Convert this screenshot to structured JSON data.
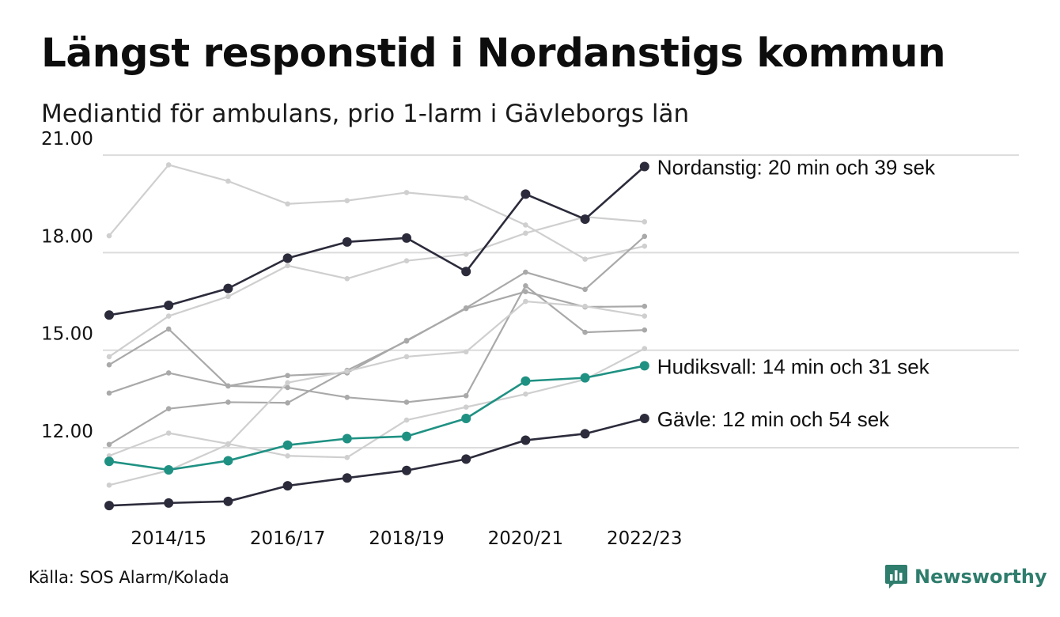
{
  "title": "Längst responstid i Nordanstigs kommun",
  "subtitle": "Mediantid för ambulans, prio 1-larm i Gävleborgs län",
  "source": "Källa: SOS Alarm/Kolada",
  "brand": {
    "name": "Newsworthy",
    "icon": "newsworthy-logo-icon",
    "color": "#2f7d6d"
  },
  "chart_data": {
    "type": "line",
    "title": "Längst responstid i Nordanstigs kommun",
    "subtitle": "Mediantid för ambulans, prio 1-larm i Gävleborgs län",
    "xlabel": "",
    "ylabel": "",
    "x": [
      "2013/14",
      "2014/15",
      "2015/16",
      "2016/17",
      "2017/18",
      "2018/19",
      "2019/20",
      "2020/21",
      "2021/22",
      "2022/23"
    ],
    "x_tick_labels": [
      {
        "index": 1,
        "label": "2014/15"
      },
      {
        "index": 3,
        "label": "2016/17"
      },
      {
        "index": 5,
        "label": "2018/19"
      },
      {
        "index": 7,
        "label": "2020/21"
      },
      {
        "index": 9,
        "label": "2022/23"
      }
    ],
    "y_ticks": [
      {
        "value": 12,
        "label": "12.00"
      },
      {
        "value": 15,
        "label": "15.00"
      },
      {
        "value": 18,
        "label": "18.00"
      },
      {
        "value": 21,
        "label": "21.00"
      }
    ],
    "ylim": [
      10.4,
      21.6
    ],
    "grid": true,
    "highlighted": [
      {
        "values": [
          16.08,
          16.38,
          16.9,
          17.83,
          18.33,
          18.45,
          17.42,
          19.8,
          19.03,
          20.65
        ],
        "color": "#2b2b3b",
        "end_label": "Nordanstig: 20 min och 39 sek"
      },
      {
        "values": [
          11.58,
          11.32,
          11.6,
          12.08,
          12.28,
          12.35,
          12.9,
          14.05,
          14.15,
          14.52
        ],
        "color": "#1f9183",
        "end_label": "Hudiksvall: 14 min och 31 sek"
      },
      {
        "values": [
          10.22,
          10.3,
          10.35,
          10.83,
          11.07,
          11.3,
          11.65,
          12.23,
          12.43,
          12.9
        ],
        "color": "#2b2b3b",
        "end_label": "Gävle: 12 min och 54 sek"
      }
    ],
    "background_series": [
      {
        "values": [
          18.52,
          20.7,
          20.2,
          19.5,
          19.6,
          19.85,
          19.68,
          18.85,
          17.8,
          18.2
        ],
        "color": "#cfcfcf"
      },
      {
        "values": [
          14.8,
          16.05,
          16.65,
          17.6,
          17.2,
          17.75,
          17.95,
          18.6,
          19.1,
          18.95
        ],
        "color": "#cfcfcf"
      },
      {
        "values": [
          14.55,
          15.65,
          13.9,
          13.85,
          13.55,
          13.4,
          13.6,
          16.98,
          15.55,
          15.62
        ],
        "color": "#a9a9a9"
      },
      {
        "values": [
          13.68,
          14.3,
          13.9,
          14.22,
          14.3,
          15.3,
          16.28,
          16.8,
          16.33,
          16.35
        ],
        "color": "#a9a9a9"
      },
      {
        "values": [
          12.1,
          13.2,
          13.4,
          13.38,
          14.38,
          15.28,
          16.3,
          17.4,
          16.87,
          18.5
        ],
        "color": "#a9a9a9"
      },
      {
        "values": [
          11.75,
          12.45,
          12.12,
          11.75,
          11.7,
          12.85,
          13.25,
          13.65,
          14.1,
          15.05
        ],
        "color": "#cfcfcf"
      },
      {
        "values": [
          10.85,
          11.3,
          12.1,
          14.0,
          14.35,
          14.8,
          14.95,
          16.5,
          16.35,
          16.05
        ],
        "color": "#cfcfcf"
      }
    ],
    "legend": "end-of-line labels"
  }
}
